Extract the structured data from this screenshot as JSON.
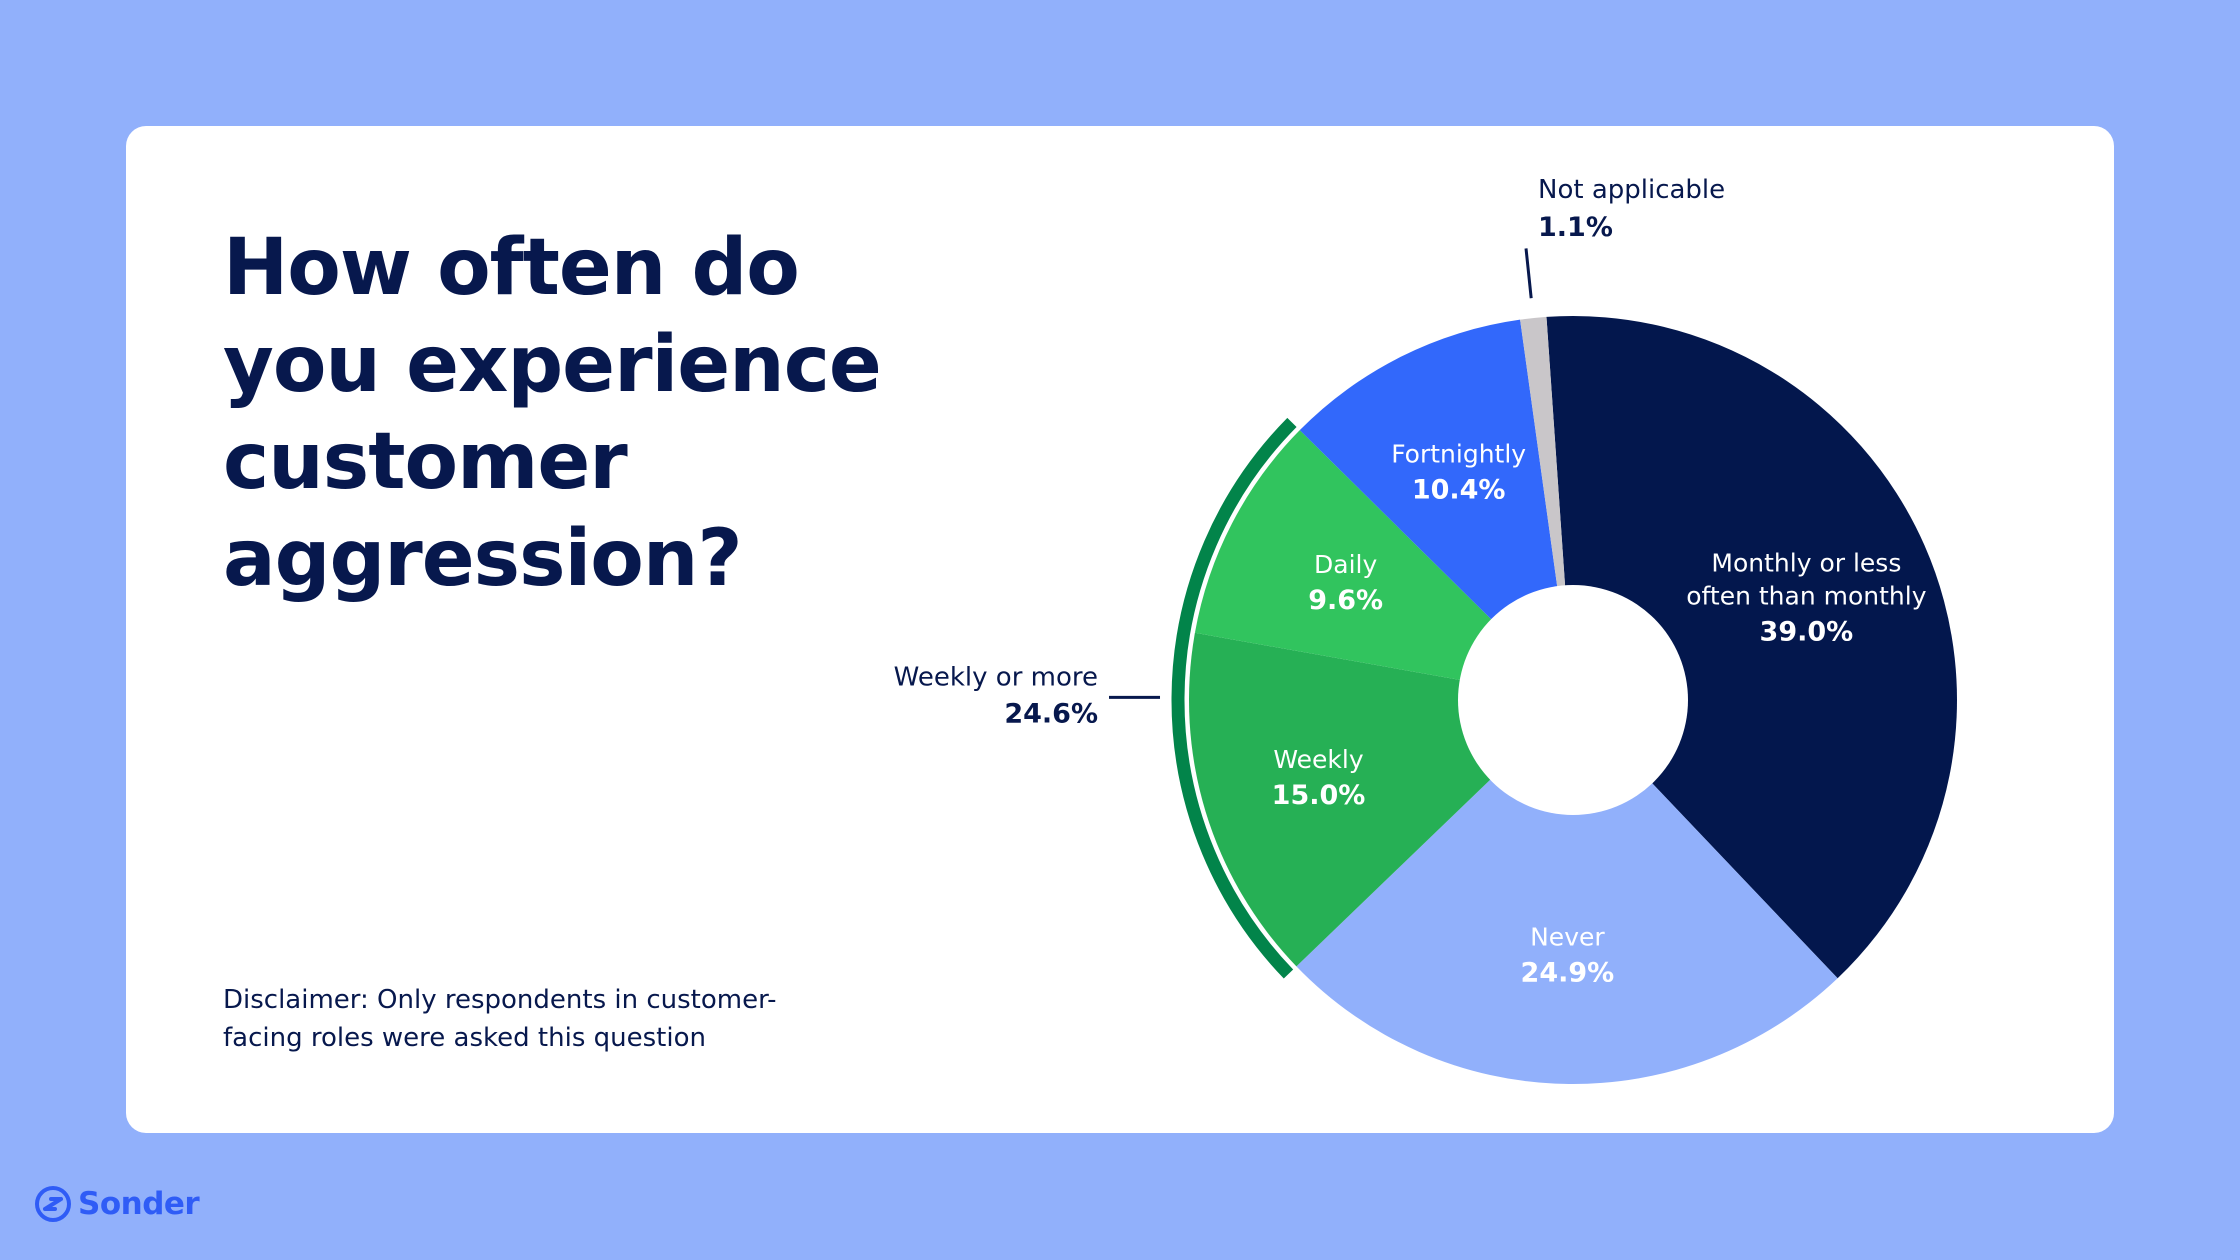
{
  "title": "How often do you experience customer aggression?",
  "disclaimer": "Disclaimer: Only respondents in customer-facing roles were asked this question",
  "brand": {
    "name": "Sonder",
    "icon": "sonder-logo-icon",
    "color": "#2f5cf6"
  },
  "colors": {
    "background": "#91b0fb",
    "card": "#ffffff",
    "text": "#07184d"
  },
  "chart_data": {
    "type": "pie",
    "title": "How often do you experience customer aggression?",
    "donut": true,
    "slices": [
      {
        "label": "Monthly or less often than monthly",
        "value": 39.0,
        "display": "39.0%",
        "color": "#03174d",
        "text_color": "#ffffff",
        "label_lines": [
          "Monthly or less",
          "often than monthly"
        ]
      },
      {
        "label": "Never",
        "value": 24.9,
        "display": "24.9%",
        "color": "#91b0fb",
        "text_color": "#ffffff",
        "label_lines": [
          "Never"
        ]
      },
      {
        "label": "Weekly",
        "value": 15.0,
        "display": "15.0%",
        "color": "#26b055",
        "text_color": "#ffffff",
        "label_lines": [
          "Weekly"
        ]
      },
      {
        "label": "Daily",
        "value": 9.6,
        "display": "9.6%",
        "color": "#31c45e",
        "text_color": "#ffffff",
        "label_lines": [
          "Daily"
        ]
      },
      {
        "label": "Fortnightly",
        "value": 10.4,
        "display": "10.4%",
        "color": "#3268fb",
        "text_color": "#ffffff",
        "label_lines": [
          "Fortnightly"
        ]
      },
      {
        "label": "Not applicable",
        "value": 1.1,
        "display": "1.1%",
        "color": "#c9c6c9",
        "text_color": "#07184d",
        "label_lines": [
          "Not applicable"
        ]
      }
    ],
    "groups": [
      {
        "label": "Weekly or more",
        "value": 24.6,
        "display": "24.6%",
        "members": [
          "Weekly",
          "Daily"
        ],
        "color": "#02844a"
      }
    ]
  }
}
